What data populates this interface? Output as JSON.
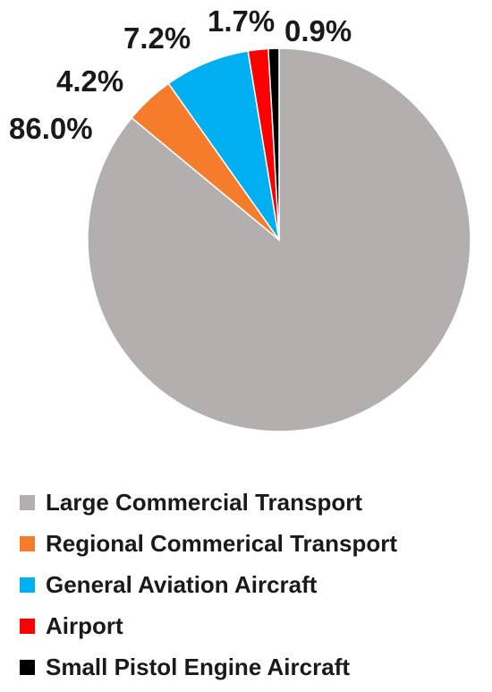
{
  "chart_data": {
    "type": "pie",
    "title": "",
    "slices": [
      {
        "label": "Large Commercial Transport",
        "value": 86.0,
        "display": "86.0%",
        "color": "#b4afaf"
      },
      {
        "label": "Regional Commerical Transport",
        "value": 4.2,
        "display": "4.2%",
        "color": "#f47c2a"
      },
      {
        "label": "General Aviation Aircraft",
        "value": 7.2,
        "display": "7.2%",
        "color": "#00b0f0"
      },
      {
        "label": "Airport",
        "value": 1.7,
        "display": "1.7%",
        "color": "#ff0000"
      },
      {
        "label": "Small Pistol Engine Aircraft",
        "value": 0.9,
        "display": "0.9%",
        "color": "#000000"
      }
    ],
    "legend_position": "bottom"
  }
}
